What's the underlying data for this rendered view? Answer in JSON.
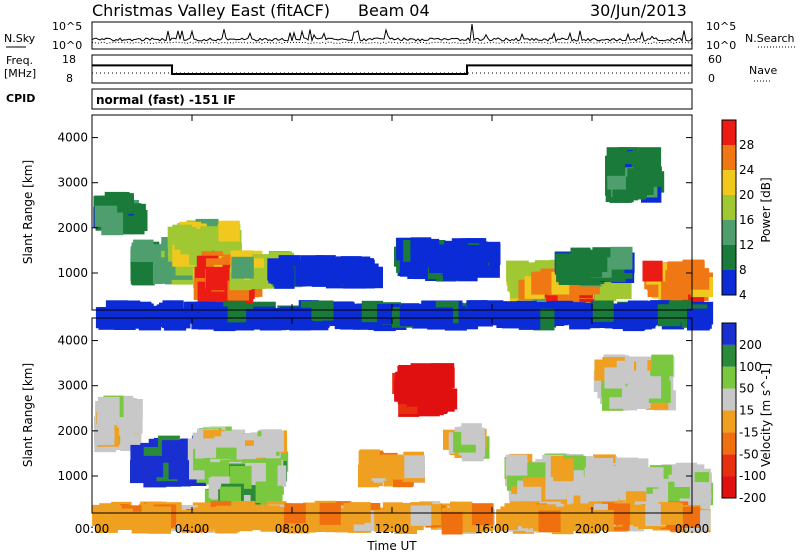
{
  "header": {
    "title": "Christmas Valley East (fitACF)",
    "beam": "Beam 04",
    "date": "30/Jun/2013"
  },
  "noise_panel": {
    "left_label": "N.Sky",
    "right_label": "N.Search",
    "left_ticks": [
      "10^5",
      "10^0"
    ],
    "right_ticks": [
      "10^5",
      "10^0"
    ]
  },
  "freq_panel": {
    "left_label_line1": "Freq.",
    "left_label_line2": "[MHz]",
    "right_label": "Nave",
    "left_ticks": [
      "18",
      "8"
    ],
    "right_ticks": [
      "60",
      "0"
    ],
    "levels": [
      {
        "t_start": 0.0,
        "t_end": 3.2,
        "value": 14.8
      },
      {
        "t_start": 3.2,
        "t_end": 15.0,
        "value": 10.5
      },
      {
        "t_start": 15.0,
        "t_end": 24.0,
        "value": 14.8
      }
    ]
  },
  "cpid_panel": {
    "label": "CPID",
    "text": "normal (fast) -151 IF"
  },
  "x_axis": {
    "label": "Time UT",
    "ticks": [
      "00:00",
      "04:00",
      "08:00",
      "12:00",
      "16:00",
      "20:00",
      "00:00"
    ]
  },
  "chart_data": [
    {
      "type": "heatmap",
      "parameter": "power",
      "ylabel": "Slant Range [km]",
      "yticks": [
        "1000",
        "2000",
        "3000",
        "4000"
      ],
      "ylim": [
        180,
        4500
      ],
      "xlim_hours": [
        0,
        24
      ],
      "colorbar": {
        "label": "Power [dB]",
        "ticks": [
          "4",
          "8",
          "12",
          "16",
          "20",
          "24",
          "28"
        ],
        "colors": [
          "#0a2bd6",
          "#1a7a3a",
          "#4e9e6e",
          "#a0c832",
          "#f0c81e",
          "#f07814",
          "#ea1c14"
        ]
      },
      "regions": [
        {
          "t0": 0.0,
          "t1": 1.5,
          "r0": 2300,
          "r1": 2900,
          "level": 1
        },
        {
          "t0": 1.5,
          "t1": 3.5,
          "r0": 1200,
          "r1": 1800,
          "level": 2
        },
        {
          "t0": 3.0,
          "t1": 5.2,
          "r0": 1400,
          "r1": 2200,
          "level": 3
        },
        {
          "t0": 4.0,
          "t1": 6.0,
          "r0": 800,
          "r1": 1500,
          "level": 5
        },
        {
          "t0": 4.5,
          "t1": 5.8,
          "r0": 750,
          "r1": 1200,
          "level": 6
        },
        {
          "t0": 5.5,
          "t1": 7.5,
          "r0": 1100,
          "r1": 1500,
          "level": 3
        },
        {
          "t0": 7.0,
          "t1": 11.0,
          "r0": 1100,
          "r1": 1400,
          "level": 0
        },
        {
          "t0": 12.0,
          "t1": 15.5,
          "r0": 1300,
          "r1": 1800,
          "level": 0
        },
        {
          "t0": 16.5,
          "t1": 21.0,
          "r0": 800,
          "r1": 1300,
          "level": 3
        },
        {
          "t0": 17.0,
          "t1": 19.5,
          "r0": 800,
          "r1": 1100,
          "level": 5
        },
        {
          "t0": 18.5,
          "t1": 21.0,
          "r0": 1200,
          "r1": 1600,
          "level": 1
        },
        {
          "t0": 22.0,
          "t1": 24.0,
          "r0": 800,
          "r1": 1300,
          "level": 5
        },
        {
          "t0": 20.5,
          "t1": 22.0,
          "r0": 3000,
          "r1": 3800,
          "level": 1
        },
        {
          "t0": 0.0,
          "t1": 24.0,
          "r0": 200,
          "r1": 400,
          "level": 0
        }
      ]
    },
    {
      "type": "heatmap",
      "parameter": "velocity",
      "ylabel": "Slant Range [km]",
      "yticks": [
        "1000",
        "2000",
        "3000",
        "4000"
      ],
      "ylim": [
        180,
        4500
      ],
      "xlim_hours": [
        0,
        24
      ],
      "colorbar": {
        "label": "Velocity [m s^-1]",
        "ticks": [
          "200",
          "100",
          "50",
          "15",
          "-15",
          "-50",
          "-100",
          "-200"
        ],
        "colors": [
          "#1a2fcf",
          "#2a8a3a",
          "#7ac840",
          "#c8c8c8",
          "#f0a020",
          "#f07010",
          "#e83010",
          "#e01010"
        ]
      },
      "regions": [
        {
          "t0": 0.0,
          "t1": 1.2,
          "r0": 2000,
          "r1": 2800,
          "level": 3
        },
        {
          "t0": 1.5,
          "t1": 4.0,
          "r0": 1200,
          "r1": 1900,
          "level": 0
        },
        {
          "t0": 3.8,
          "t1": 7.0,
          "r0": 1300,
          "r1": 2100,
          "level": 3
        },
        {
          "t0": 4.5,
          "t1": 7.0,
          "r0": 600,
          "r1": 1400,
          "level": 2
        },
        {
          "t0": 10.5,
          "t1": 12.5,
          "r0": 1200,
          "r1": 1600,
          "level": 4
        },
        {
          "t0": 12.0,
          "t1": 13.8,
          "r0": 2800,
          "r1": 3500,
          "level": 7
        },
        {
          "t0": 14.0,
          "t1": 15.2,
          "r0": 1800,
          "r1": 2200,
          "level": 3
        },
        {
          "t0": 16.5,
          "t1": 21.5,
          "r0": 600,
          "r1": 1500,
          "level": 3
        },
        {
          "t0": 20.0,
          "t1": 22.5,
          "r0": 2900,
          "r1": 3700,
          "level": 3
        },
        {
          "t0": 22.0,
          "t1": 24.0,
          "r0": 500,
          "r1": 1300,
          "level": 3
        },
        {
          "t0": 0.0,
          "t1": 24.0,
          "r0": 200,
          "r1": 450,
          "level": 4
        }
      ]
    }
  ]
}
